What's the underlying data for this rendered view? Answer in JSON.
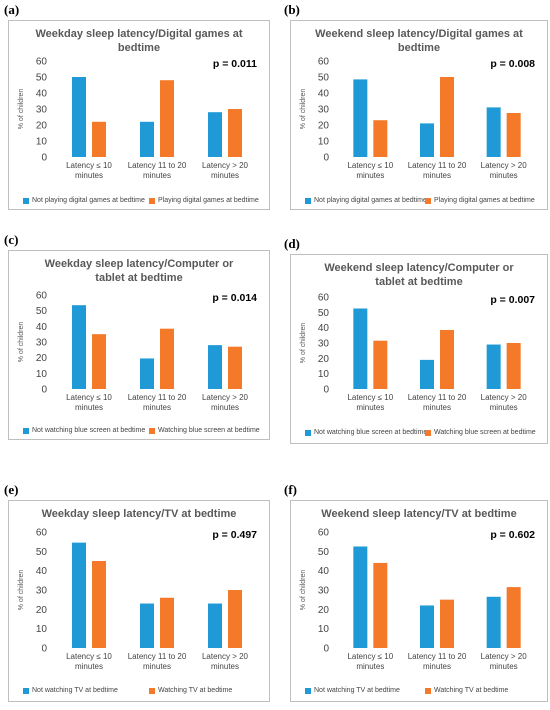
{
  "chart_data": [
    {
      "type": "bar",
      "panel": "(a)",
      "title": "Weekday sleep latency/Digital games at bedtime",
      "annotation": "p = 0.011",
      "ylabel": "% of children",
      "categories": [
        "Latency ≤ 10 minutes",
        "Latency 11 to 20 minutes",
        "Latency > 20 minutes"
      ],
      "series": [
        {
          "name": "Not playing digital games at bedtime",
          "color": "#1f9ad6",
          "values": [
            50,
            22,
            28
          ]
        },
        {
          "name": "Playing digital games at bedtime",
          "color": "#f47a2a",
          "values": [
            22,
            48,
            30
          ]
        }
      ],
      "ylim": [
        0,
        60
      ],
      "yticks": [
        0,
        10,
        20,
        30,
        40,
        50,
        60
      ],
      "grid": false
    },
    {
      "type": "bar",
      "panel": "(b)",
      "title": "Weekend sleep latency/Digital games at bedtime",
      "annotation": "p = 0.008",
      "ylabel": "% of children",
      "categories": [
        "Latency ≤ 10 minutes",
        "Latency 11 to 20 minutes",
        "Latency > 20 minutes"
      ],
      "series": [
        {
          "name": "Not playing digital games at bedtime",
          "color": "#1f9ad6",
          "values": [
            48.5,
            21,
            31
          ]
        },
        {
          "name": "Playing digital games at bedtime",
          "color": "#f47a2a",
          "values": [
            23,
            50,
            27.5
          ]
        }
      ],
      "ylim": [
        0,
        60
      ],
      "yticks": [
        0,
        10,
        20,
        30,
        40,
        50,
        60
      ],
      "grid": false
    },
    {
      "type": "bar",
      "panel": "(c)",
      "title": "Weekday sleep latency/Computer or tablet at bedtime",
      "annotation": "p = 0.014",
      "ylabel": "% of children",
      "categories": [
        "Latency ≤ 10 minutes",
        "Latency 11 to 20 minutes",
        "Latency > 20 minutes"
      ],
      "series": [
        {
          "name": "Not watching blue screen at bedtime",
          "color": "#1f9ad6",
          "values": [
            53.5,
            19.5,
            28
          ]
        },
        {
          "name": "Watching blue screen at bedtime",
          "color": "#f47a2a",
          "values": [
            35,
            38.5,
            27
          ]
        }
      ],
      "ylim": [
        0,
        60
      ],
      "yticks": [
        0,
        10,
        20,
        30,
        40,
        50,
        60
      ],
      "grid": false
    },
    {
      "type": "bar",
      "panel": "(d)",
      "title": "Weekend sleep latency/Computer or tablet at bedtime",
      "annotation": "p = 0.007",
      "ylabel": "% of children",
      "categories": [
        "Latency ≤ 10 minutes",
        "Latency 11 to 20 minutes",
        "Latency > 20 minutes"
      ],
      "series": [
        {
          "name": "Not watching blue screen at bedtime",
          "color": "#1f9ad6",
          "values": [
            52.5,
            19,
            29
          ]
        },
        {
          "name": "Watching blue screen at bedtime",
          "color": "#f47a2a",
          "values": [
            31.5,
            38.5,
            30
          ]
        }
      ],
      "ylim": [
        0,
        60
      ],
      "yticks": [
        0,
        10,
        20,
        30,
        40,
        50,
        60
      ],
      "grid": false
    },
    {
      "type": "bar",
      "panel": "(e)",
      "title": "Weekday sleep latency/TV at bedtime",
      "annotation": "p = 0.497",
      "ylabel": "% of children",
      "categories": [
        "Latency ≤ 10 minutes",
        "Latency 11 to 20 minutes",
        "Latency > 20 minutes"
      ],
      "series": [
        {
          "name": "Not watching TV at bedtime",
          "color": "#1f9ad6",
          "values": [
            54.5,
            23,
            23
          ]
        },
        {
          "name": "Watching TV at bedtime",
          "color": "#f47a2a",
          "values": [
            45,
            26,
            30
          ]
        }
      ],
      "ylim": [
        0,
        60
      ],
      "yticks": [
        0,
        10,
        20,
        30,
        40,
        50,
        60
      ],
      "grid": false
    },
    {
      "type": "bar",
      "panel": "(f)",
      "title": "Weekend sleep latency/TV at bedtime",
      "annotation": "p = 0.602",
      "ylabel": "% of children",
      "categories": [
        "Latency ≤ 10 minutes",
        "Latency 11 to 20 minutes",
        "Latency > 20 minutes"
      ],
      "series": [
        {
          "name": "Not watching TV at bedtime",
          "color": "#1f9ad6",
          "values": [
            52.5,
            22,
            26.5
          ]
        },
        {
          "name": "Watching TV at bedtime",
          "color": "#f47a2a",
          "values": [
            44,
            25,
            31.5
          ]
        }
      ],
      "ylim": [
        0,
        60
      ],
      "yticks": [
        0,
        10,
        20,
        30,
        40,
        50,
        60
      ],
      "grid": false
    }
  ]
}
